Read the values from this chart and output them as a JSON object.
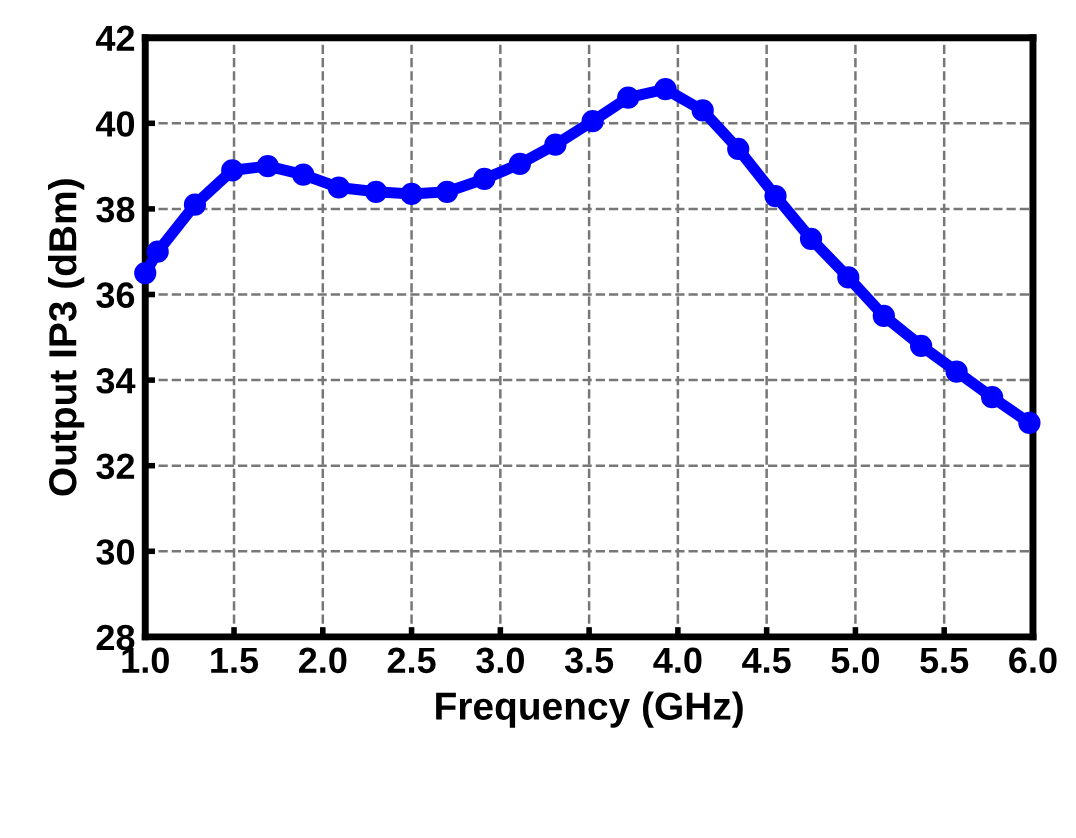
{
  "chart_data": {
    "type": "line",
    "xlabel": "Frequency (GHz)",
    "ylabel": "Output IP3 (dBm)",
    "series": [
      {
        "color": "#0000ff",
        "x": [
          1.0,
          1.07,
          1.28,
          1.49,
          1.69,
          1.89,
          2.09,
          2.3,
          2.5,
          2.7,
          2.91,
          3.11,
          3.31,
          3.52,
          3.72,
          3.93,
          4.14,
          4.34,
          4.55,
          4.75,
          4.96,
          5.16,
          5.37,
          5.57,
          5.77,
          5.98
        ],
        "values": [
          36.5,
          37.0,
          38.1,
          38.9,
          39.0,
          38.8,
          38.5,
          38.4,
          38.35,
          38.4,
          38.7,
          39.05,
          39.5,
          40.05,
          40.6,
          40.8,
          40.3,
          39.4,
          38.3,
          37.3,
          36.4,
          35.5,
          34.8,
          34.2,
          33.6,
          33.0
        ]
      }
    ],
    "xlim": [
      1.0,
      6.0
    ],
    "xticks": [
      {
        "value": 1.0,
        "label": "1.0"
      },
      {
        "value": 1.5,
        "label": "1.5"
      },
      {
        "value": 2.0,
        "label": "2.0"
      },
      {
        "value": 2.5,
        "label": "2.5"
      },
      {
        "value": 3.0,
        "label": "3.0"
      },
      {
        "value": 3.5,
        "label": "3.5"
      },
      {
        "value": 4.0,
        "label": "4.0"
      },
      {
        "value": 4.5,
        "label": "4.5"
      },
      {
        "value": 5.0,
        "label": "5.0"
      },
      {
        "value": 5.5,
        "label": "5.5"
      },
      {
        "value": 6.0,
        "label": "6.0"
      }
    ],
    "ylim": [
      28,
      42
    ],
    "yticks": [
      28,
      30,
      32,
      34,
      36,
      38,
      40,
      42
    ],
    "grid": true,
    "marker": "circle",
    "line_style": "solid"
  }
}
